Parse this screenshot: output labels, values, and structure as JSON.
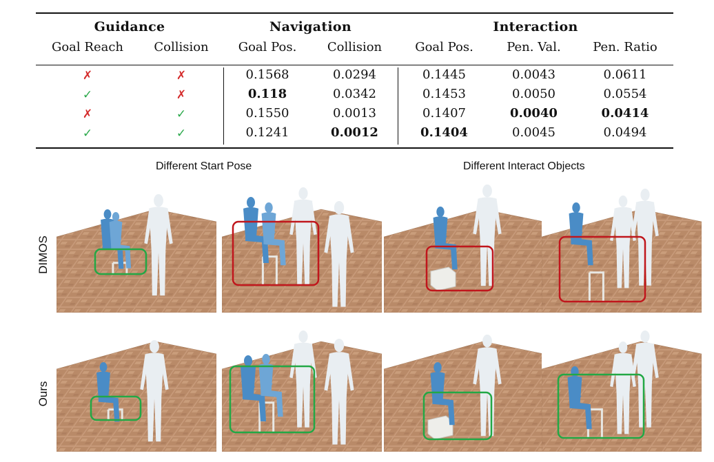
{
  "table": {
    "group_headers": [
      "Guidance",
      "Navigation",
      "Interaction"
    ],
    "columns": [
      "Goal Reach",
      "Collision",
      "Goal Pos.",
      "Collision",
      "Goal Pos.",
      "Pen. Val.",
      "Pen. Ratio"
    ],
    "rows": [
      {
        "goal_reach": "✗",
        "collision": "✗",
        "values": [
          "0.1568",
          "0.0294",
          "0.1445",
          "0.0043",
          "0.0611"
        ]
      },
      {
        "goal_reach": "✓",
        "collision": "✗",
        "values": [
          "0.118",
          "0.0342",
          "0.1453",
          "0.0050",
          "0.0554"
        ]
      },
      {
        "goal_reach": "✗",
        "collision": "✓",
        "values": [
          "0.1550",
          "0.0013",
          "0.1407",
          "0.0040",
          "0.0414"
        ]
      },
      {
        "goal_reach": "✓",
        "collision": "✓",
        "values": [
          "0.1241",
          "0.0012",
          "0.1404",
          "0.0045",
          "0.0494"
        ]
      }
    ],
    "bold_cells": [
      [
        1,
        0
      ],
      [
        2,
        3
      ],
      [
        2,
        4
      ],
      [
        3,
        1
      ],
      [
        3,
        2
      ]
    ],
    "colors": {
      "cross": "#d42b2b",
      "check": "#2aa84a"
    }
  },
  "figure": {
    "column_captions": [
      "Different Start Pose",
      "Different Interact Objects"
    ],
    "row_labels": [
      "DIMOS",
      "Ours"
    ],
    "box_colors": {
      "failure": "#c0161c",
      "success": "#22a845"
    },
    "panels": [
      {
        "row": "DIMOS",
        "box": "success"
      },
      {
        "row": "DIMOS",
        "box": "failure"
      },
      {
        "row": "DIMOS",
        "box": "failure"
      },
      {
        "row": "DIMOS",
        "box": "failure"
      },
      {
        "row": "Ours",
        "box": "success"
      },
      {
        "row": "Ours",
        "box": "success"
      },
      {
        "row": "Ours",
        "box": "success"
      },
      {
        "row": "Ours",
        "box": "success"
      }
    ]
  }
}
